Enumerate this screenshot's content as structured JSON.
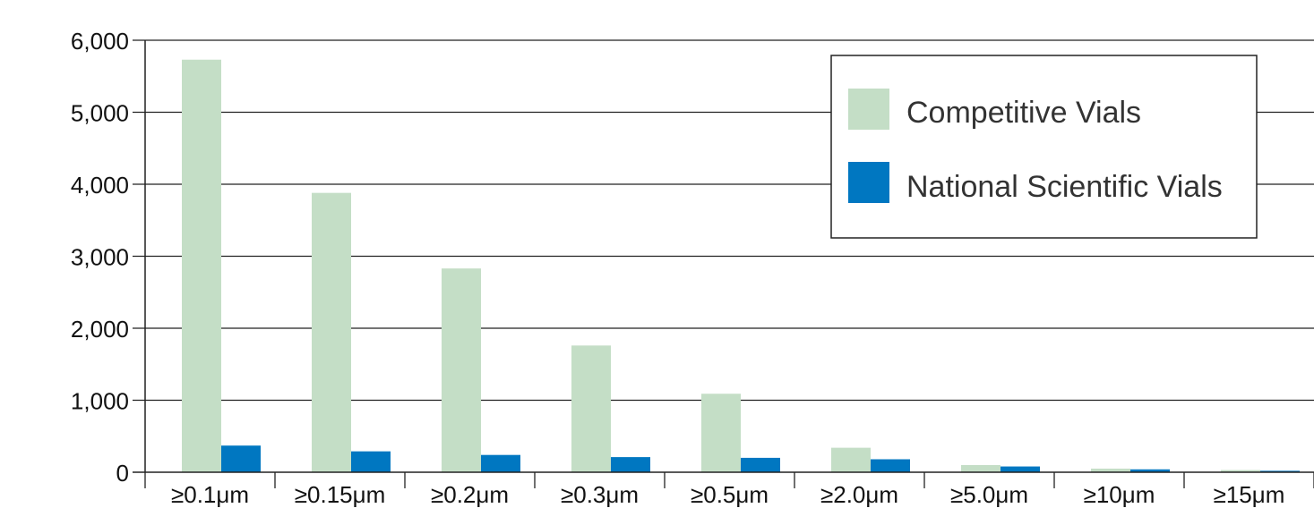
{
  "chart_data": {
    "type": "bar",
    "categories": [
      "≥0.1μm",
      "≥0.15μm",
      "≥0.2μm",
      "≥0.3μm",
      "≥0.5μm",
      "≥2.0μm",
      "≥5.0μm",
      "≥10μm",
      "≥15μm"
    ],
    "series": [
      {
        "name": "Competitive Vials",
        "color": "#c4dec6",
        "values": [
          5730,
          3880,
          2830,
          1760,
          1090,
          340,
          100,
          50,
          30
        ]
      },
      {
        "name": "National Scientific Vials",
        "color": "#0077c1",
        "values": [
          370,
          290,
          240,
          210,
          200,
          180,
          80,
          40,
          20
        ]
      }
    ],
    "title": "",
    "xlabel": "",
    "ylabel": "",
    "ylim": [
      0,
      6000
    ],
    "yticks": [
      0,
      1000,
      2000,
      3000,
      4000,
      5000,
      6000
    ],
    "ytick_labels": [
      "0",
      "1,000",
      "2,000",
      "3,000",
      "4,000",
      "5,000",
      "6,000"
    ],
    "grid": "horizontal",
    "legend": {
      "placement": "top-right",
      "entries": [
        "Competitive Vials",
        "National Scientific Vials"
      ]
    }
  }
}
